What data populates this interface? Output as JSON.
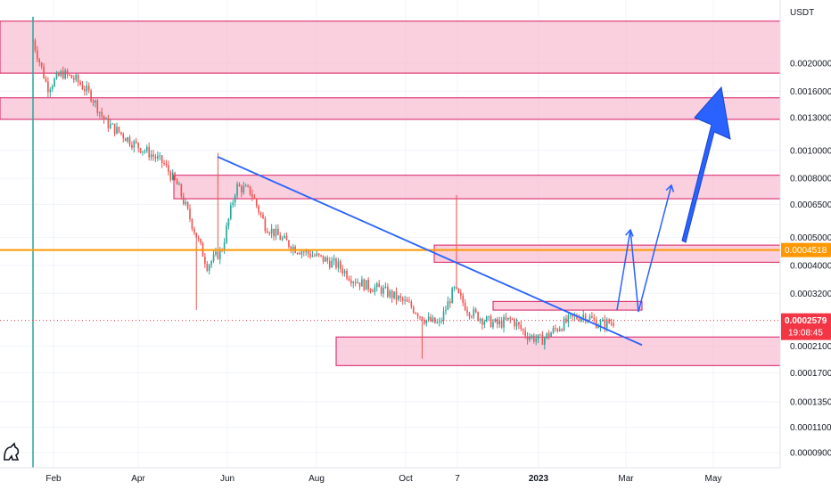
{
  "chart_data": {
    "type": "candlestick",
    "instrument_unit": "USDT",
    "y_scale": "log",
    "ylim": [
      8.5e-05,
      0.003
    ],
    "y_ticks": [
      "0.0020000",
      "0.0016000",
      "0.0013000",
      "0.0010000",
      "0.0008000",
      "0.0006500",
      "0.0005000",
      "0.0004000",
      "0.0003200",
      "0.0002579",
      "0.0002100",
      "0.0001700",
      "0.0001350",
      "0.0001100",
      "0.0000900"
    ],
    "x_ticks": [
      {
        "label": "Feb",
        "bold": false
      },
      {
        "label": "Apr",
        "bold": false
      },
      {
        "label": "Jun",
        "bold": false
      },
      {
        "label": "Aug",
        "bold": false
      },
      {
        "label": "Oct",
        "bold": false
      },
      {
        "label": "7",
        "bold": false
      },
      {
        "label": "2023",
        "bold": true
      },
      {
        "label": "Mar",
        "bold": false
      },
      {
        "label": "May",
        "bold": false
      }
    ],
    "current_price": {
      "label": "0.0002579",
      "countdown": "19:08:45",
      "color": "#f23645"
    },
    "horizontal_level": {
      "label": "0.0004518",
      "value": 0.0004518,
      "color": "#ff9800"
    },
    "zones": [
      {
        "low": 0.00185,
        "high": 0.0028
      },
      {
        "low": 0.00128,
        "high": 0.00152
      },
      {
        "low": 0.00068,
        "high": 0.00082
      },
      {
        "low": 0.00041,
        "high": 0.00047
      },
      {
        "low": 0.00028,
        "high": 0.0003
      },
      {
        "low": 0.00018,
        "high": 0.000226
      }
    ],
    "trendline": {
      "start": 0.00095,
      "end": 0.000212
    },
    "price_path": [
      0.0024,
      0.00165,
      0.00185,
      0.00175,
      0.00155,
      0.00125,
      0.00115,
      0.00105,
      0.00098,
      0.0009,
      0.00075,
      0.00055,
      0.0004,
      0.00045,
      0.00075,
      0.00072,
      0.00055,
      0.0005,
      0.00046,
      0.00044,
      0.00042,
      0.0004,
      0.00036,
      0.00034,
      0.00033,
      0.00031,
      0.00029,
      0.00026,
      0.00025,
      0.00033,
      0.00028,
      0.00026,
      0.00025,
      0.00026,
      0.00023,
      0.00022,
      0.00024,
      0.00026,
      0.00027,
      0.00025,
      0.000255
    ],
    "colors": {
      "up": "#26a69a",
      "down": "#ef5350",
      "zone_fill": "#f8bbd0",
      "zone_stroke": "#d81b60",
      "trend": "#2962ff",
      "arrow": "#2962ff",
      "grid": "#f0f3fa"
    }
  }
}
